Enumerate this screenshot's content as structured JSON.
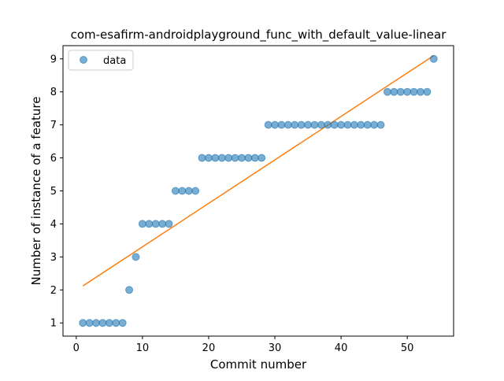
{
  "chart_data": {
    "type": "scatter",
    "title": "com-esafirm-androidplayground_func_with_default_value-linear",
    "xlabel": "Commit number",
    "ylabel": "Number of instance of a feature",
    "xlim": [
      -2,
      57
    ],
    "ylim": [
      0.6,
      9.4
    ],
    "xticks": [
      0,
      10,
      20,
      30,
      40,
      50
    ],
    "yticks": [
      1,
      2,
      3,
      4,
      5,
      6,
      7,
      8,
      9
    ],
    "legend": {
      "placement": "top-left",
      "entries": [
        "data"
      ]
    },
    "grid": false,
    "colors": {
      "data": "#1f77b4",
      "fit": "#ff7f0e"
    },
    "series": [
      {
        "name": "data",
        "kind": "scatter",
        "x": [
          1,
          2,
          3,
          4,
          5,
          6,
          7,
          8,
          9,
          10,
          11,
          12,
          13,
          14,
          15,
          16,
          17,
          18,
          19,
          20,
          21,
          22,
          23,
          24,
          25,
          26,
          27,
          28,
          29,
          30,
          31,
          32,
          33,
          34,
          35,
          36,
          37,
          38,
          39,
          40,
          41,
          42,
          43,
          44,
          45,
          46,
          47,
          48,
          49,
          50,
          51,
          52,
          53,
          54
        ],
        "y": [
          1,
          1,
          1,
          1,
          1,
          1,
          1,
          2,
          3,
          4,
          4,
          4,
          4,
          4,
          5,
          5,
          5,
          5,
          6,
          6,
          6,
          6,
          6,
          6,
          6,
          6,
          6,
          6,
          7,
          7,
          7,
          7,
          7,
          7,
          7,
          7,
          7,
          7,
          7,
          7,
          7,
          7,
          7,
          7,
          7,
          7,
          8,
          8,
          8,
          8,
          8,
          8,
          8,
          9
        ]
      },
      {
        "kind": "line",
        "x": [
          1,
          54
        ],
        "y": [
          2.12,
          9.1
        ]
      }
    ]
  }
}
